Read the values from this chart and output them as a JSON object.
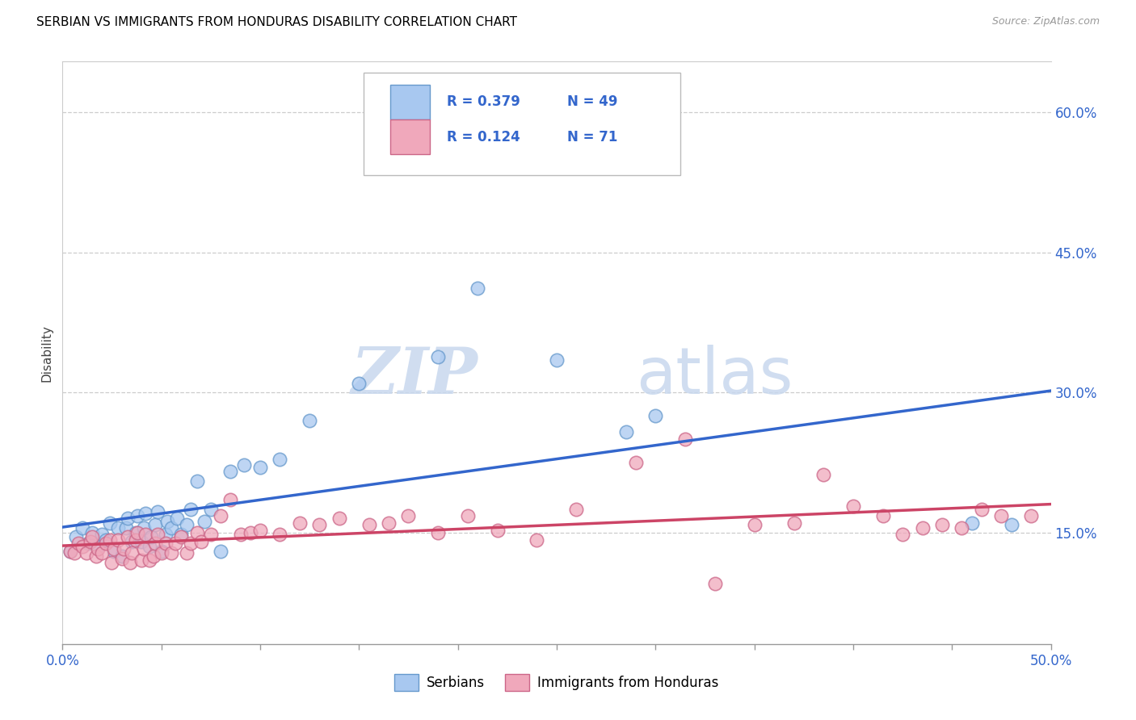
{
  "title": "SERBIAN VS IMMIGRANTS FROM HONDURAS DISABILITY CORRELATION CHART",
  "source": "Source: ZipAtlas.com",
  "ylabel": "Disability",
  "ytick_labels": [
    "15.0%",
    "30.0%",
    "45.0%",
    "60.0%"
  ],
  "ytick_values": [
    0.15,
    0.3,
    0.45,
    0.6
  ],
  "xlim": [
    0.0,
    0.5
  ],
  "ylim": [
    0.03,
    0.655
  ],
  "legend_serbian_r": "R = 0.379",
  "legend_serbian_n": "N = 49",
  "legend_honduras_r": "R = 0.124",
  "legend_honduras_n": "N = 71",
  "color_serbian_fill": "#A8C8F0",
  "color_serbian_edge": "#6699CC",
  "color_honduras_fill": "#F0A8BB",
  "color_honduras_edge": "#CC6688",
  "color_line_serbian": "#3366CC",
  "color_line_honduras": "#CC4466",
  "watermark_zip": "ZIP",
  "watermark_atlas": "atlas",
  "grid_color": "#CCCCCC",
  "border_color": "#CCCCCC",
  "serbian_x": [
    0.004,
    0.007,
    0.01,
    0.013,
    0.015,
    0.018,
    0.02,
    0.022,
    0.024,
    0.026,
    0.028,
    0.03,
    0.032,
    0.033,
    0.035,
    0.037,
    0.038,
    0.04,
    0.041,
    0.042,
    0.044,
    0.045,
    0.047,
    0.048,
    0.05,
    0.052,
    0.053,
    0.055,
    0.058,
    0.06,
    0.063,
    0.065,
    0.068,
    0.072,
    0.075,
    0.08,
    0.085,
    0.092,
    0.1,
    0.11,
    0.125,
    0.15,
    0.19,
    0.21,
    0.25,
    0.285,
    0.3,
    0.46,
    0.48
  ],
  "serbian_y": [
    0.13,
    0.145,
    0.155,
    0.138,
    0.15,
    0.135,
    0.148,
    0.142,
    0.16,
    0.13,
    0.155,
    0.125,
    0.155,
    0.165,
    0.14,
    0.15,
    0.168,
    0.14,
    0.155,
    0.17,
    0.135,
    0.145,
    0.158,
    0.172,
    0.13,
    0.148,
    0.162,
    0.155,
    0.165,
    0.148,
    0.158,
    0.175,
    0.205,
    0.162,
    0.175,
    0.13,
    0.215,
    0.222,
    0.22,
    0.228,
    0.27,
    0.31,
    0.338,
    0.412,
    0.335,
    0.258,
    0.275,
    0.16,
    0.158
  ],
  "honduras_x": [
    0.004,
    0.006,
    0.008,
    0.01,
    0.012,
    0.014,
    0.015,
    0.017,
    0.018,
    0.02,
    0.022,
    0.024,
    0.025,
    0.026,
    0.028,
    0.03,
    0.031,
    0.033,
    0.034,
    0.035,
    0.037,
    0.038,
    0.04,
    0.041,
    0.042,
    0.044,
    0.046,
    0.047,
    0.048,
    0.05,
    0.052,
    0.055,
    0.057,
    0.06,
    0.063,
    0.065,
    0.068,
    0.07,
    0.075,
    0.08,
    0.085,
    0.09,
    0.095,
    0.1,
    0.11,
    0.12,
    0.13,
    0.14,
    0.155,
    0.165,
    0.175,
    0.19,
    0.205,
    0.22,
    0.24,
    0.26,
    0.29,
    0.315,
    0.33,
    0.35,
    0.37,
    0.385,
    0.4,
    0.415,
    0.425,
    0.435,
    0.445,
    0.455,
    0.465,
    0.475,
    0.49
  ],
  "honduras_y": [
    0.13,
    0.128,
    0.138,
    0.135,
    0.128,
    0.14,
    0.145,
    0.125,
    0.132,
    0.128,
    0.138,
    0.142,
    0.118,
    0.132,
    0.142,
    0.122,
    0.132,
    0.145,
    0.118,
    0.128,
    0.142,
    0.15,
    0.12,
    0.132,
    0.148,
    0.12,
    0.125,
    0.138,
    0.148,
    0.128,
    0.138,
    0.128,
    0.138,
    0.145,
    0.128,
    0.138,
    0.15,
    0.14,
    0.148,
    0.168,
    0.185,
    0.148,
    0.15,
    0.152,
    0.148,
    0.16,
    0.158,
    0.165,
    0.158,
    0.16,
    0.168,
    0.15,
    0.168,
    0.152,
    0.142,
    0.175,
    0.225,
    0.25,
    0.095,
    0.158,
    0.16,
    0.212,
    0.178,
    0.168,
    0.148,
    0.155,
    0.158,
    0.155,
    0.175,
    0.168,
    0.168
  ]
}
